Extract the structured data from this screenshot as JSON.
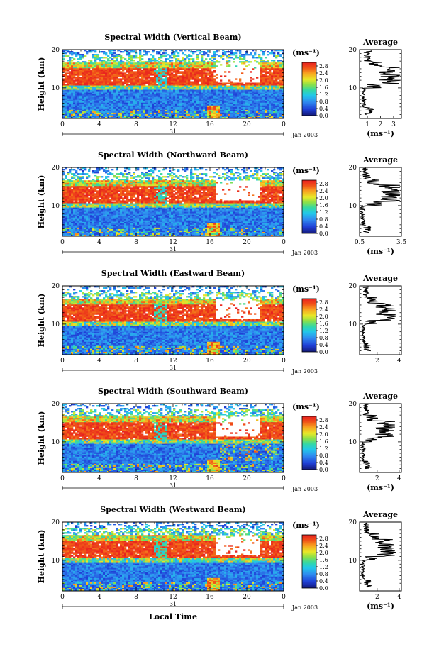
{
  "chart_data": [
    {
      "type": "heatmap",
      "title": "Spectral Width (Vertical Beam)",
      "ylabel": "Height (km)",
      "yticks": [
        "20",
        "10"
      ],
      "xticks": [
        "0",
        "4",
        "8",
        "12",
        "16",
        "20",
        "0"
      ],
      "xlim": [
        0,
        24
      ],
      "ylim": [
        2,
        20
      ],
      "day_label": "31",
      "date_label": "Jan 2003",
      "colorbar": {
        "unit": "(ms⁻¹)",
        "ticks": [
          "2.8",
          "2.4",
          "2.0",
          "1.6",
          "1.2",
          "0.8",
          "0.4",
          "0.0"
        ],
        "range": [
          0,
          3
        ]
      },
      "average": {
        "title": "Average",
        "yticks": [
          "20",
          "10"
        ],
        "xticks": [
          "1",
          "2",
          "3"
        ],
        "xlim": [
          0.4,
          3.6
        ],
        "xlabel": "(ms⁻¹)"
      }
    },
    {
      "type": "heatmap",
      "title": "Spectral Width (Northward Beam)",
      "ylabel": "Height (km)",
      "yticks": [
        "20",
        "10"
      ],
      "xticks": [
        "0",
        "4",
        "8",
        "12",
        "16",
        "20",
        "0"
      ],
      "xlim": [
        0,
        24
      ],
      "ylim": [
        2,
        20
      ],
      "day_label": "31",
      "date_label": "Jan 2003",
      "colorbar": {
        "unit": "(ms⁻¹)",
        "ticks": [
          "2.8",
          "2.4",
          "2.0",
          "1.6",
          "1.2",
          "0.8",
          "0.4",
          "0.0"
        ],
        "range": [
          0,
          3
        ]
      },
      "average": {
        "title": "Average",
        "yticks": [
          "20",
          "10"
        ],
        "xticks": [
          "0.5",
          "3.5"
        ],
        "xlim": [
          0.5,
          3.5
        ],
        "xlabel": "(ms⁻¹)"
      }
    },
    {
      "type": "heatmap",
      "title": "Spectral Width (Eastward Beam)",
      "ylabel": "Height (km)",
      "yticks": [
        "20",
        "10"
      ],
      "xticks": [
        "0",
        "4",
        "8",
        "12",
        "16",
        "20",
        "0"
      ],
      "xlim": [
        0,
        24
      ],
      "ylim": [
        2,
        20
      ],
      "day_label": "31",
      "date_label": "Jan 2003",
      "colorbar": {
        "unit": "(ms⁻¹)",
        "ticks": [
          "2.8",
          "2.4",
          "2.0",
          "1.6",
          "1.2",
          "0.8",
          "0.4",
          "0.0"
        ],
        "range": [
          0,
          3
        ]
      },
      "average": {
        "title": "Average",
        "yticks": [
          "20",
          "10"
        ],
        "xticks": [
          "2",
          "4"
        ],
        "xlim": [
          0.4,
          4.2
        ],
        "xlabel": ""
      }
    },
    {
      "type": "heatmap",
      "title": "Spectral Width (Southward Beam)",
      "ylabel": "Height (km)",
      "yticks": [
        "20",
        "10"
      ],
      "xticks": [
        "0",
        "4",
        "8",
        "12",
        "16",
        "20",
        "0"
      ],
      "xlim": [
        0,
        24
      ],
      "ylim": [
        2,
        20
      ],
      "day_label": "31",
      "date_label": "Jan 2003",
      "colorbar": {
        "unit": "(ms⁻¹)",
        "ticks": [
          "2.8",
          "2.4",
          "2.0",
          "1.6",
          "1.2",
          "0.8",
          "0.4",
          "0.0"
        ],
        "range": [
          0,
          3
        ]
      },
      "average": {
        "title": "Average",
        "yticks": [
          "20",
          "10"
        ],
        "xticks": [
          "2",
          "4"
        ],
        "xlim": [
          0.4,
          4.2
        ],
        "xlabel": "(ms⁻¹)"
      }
    },
    {
      "type": "heatmap",
      "title": "Spectral Width (Westward Beam)",
      "ylabel": "Height (km)",
      "xlabel": "Local Time",
      "yticks": [
        "20",
        "10"
      ],
      "xticks": [
        "0",
        "4",
        "8",
        "12",
        "16",
        "20",
        "0"
      ],
      "xlim": [
        0,
        24
      ],
      "ylim": [
        2,
        20
      ],
      "day_label": "31",
      "date_label": "Jan 2003",
      "colorbar": {
        "unit": "(ms⁻¹)",
        "ticks": [
          "2.8",
          "2.4",
          "2.0",
          "1.6",
          "1.2",
          "0.8",
          "0.4",
          "0.0"
        ],
        "range": [
          0,
          3
        ]
      },
      "average": {
        "title": "Average",
        "yticks": [
          "20",
          "10"
        ],
        "xticks": [
          "2",
          "4"
        ],
        "xlim": [
          0.4,
          4.2
        ],
        "xlabel": "(ms⁻¹)"
      }
    }
  ]
}
